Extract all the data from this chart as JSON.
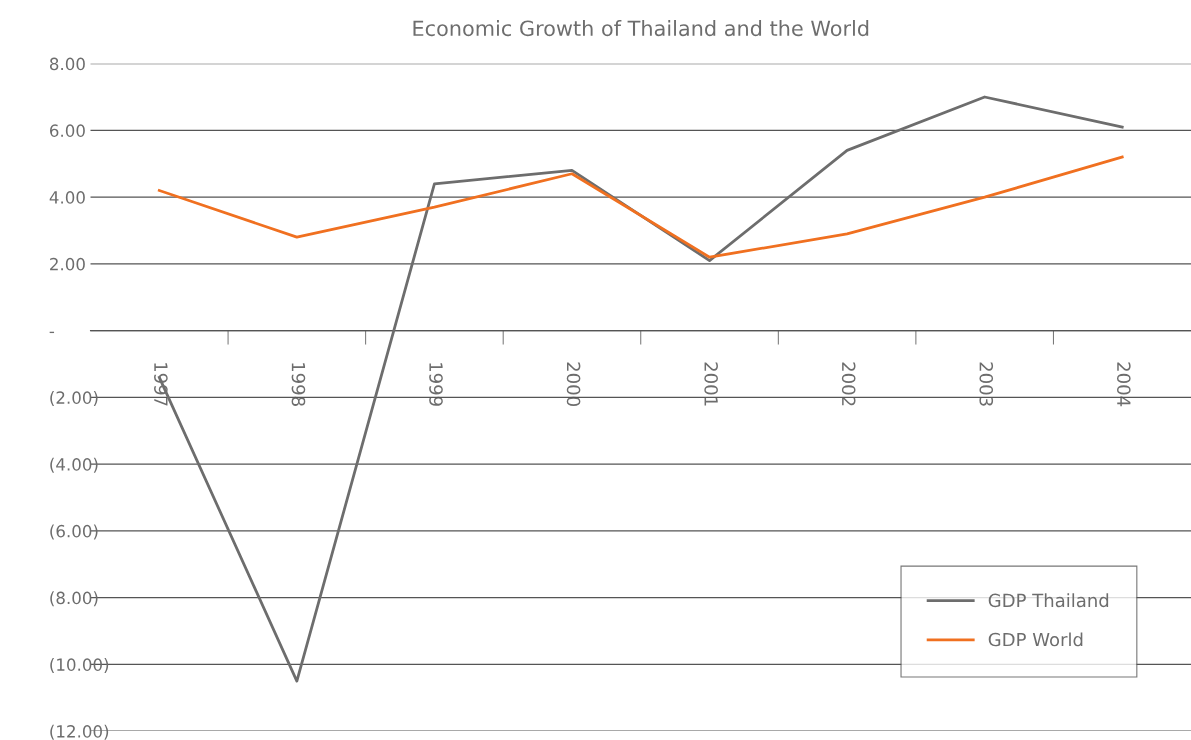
{
  "chart_data": {
    "type": "line",
    "title": "Economic Growth of Thailand and the World",
    "categories": [
      "1997",
      "1998",
      "1999",
      "2000",
      "2001",
      "2002",
      "2003",
      "2004"
    ],
    "series": [
      {
        "name": "GDP Thailand",
        "color": "#6d6d6d",
        "values": [
          -1.4,
          -10.5,
          4.4,
          4.8,
          2.1,
          5.4,
          7.0,
          6.1
        ]
      },
      {
        "name": "GDP World",
        "color": "#f07020",
        "values": [
          4.2,
          2.8,
          3.7,
          4.7,
          2.2,
          2.9,
          4.0,
          5.2
        ]
      }
    ],
    "ylim": [
      -12,
      8
    ],
    "yticks": [
      {
        "value": -12,
        "label": "(12.00)"
      },
      {
        "value": -10,
        "label": "(10.00)"
      },
      {
        "value": -8,
        "label": "(8.00)"
      },
      {
        "value": -6,
        "label": "(6.00)"
      },
      {
        "value": -4,
        "label": "(4.00)"
      },
      {
        "value": -2,
        "label": "(2.00)"
      },
      {
        "value": 0,
        "label": "-"
      },
      {
        "value": 2,
        "label": "2.00"
      },
      {
        "value": 4,
        "label": "4.00"
      },
      {
        "value": 6,
        "label": "6.00"
      },
      {
        "value": 8,
        "label": "8.00"
      }
    ],
    "grid": "y",
    "legend": "bottom right",
    "marker": "none",
    "line_style": "solid"
  }
}
